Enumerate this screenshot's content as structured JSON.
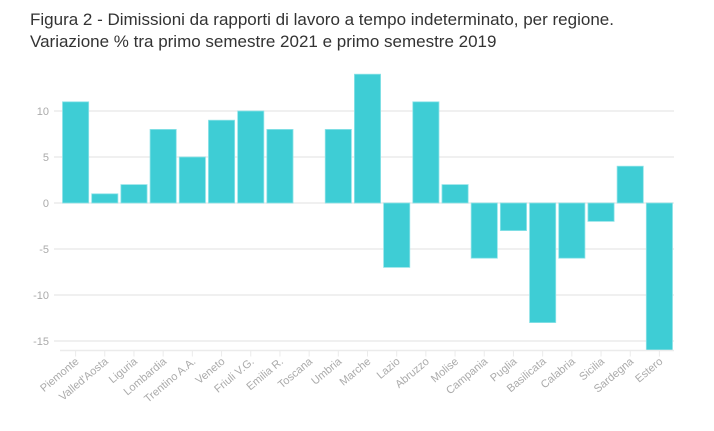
{
  "chart_data": {
    "type": "bar",
    "title": "Figura 2 - Dimissioni da rapporti di lavoro a tempo indeterminato, per regione.",
    "subtitle": "Variazione % tra primo semestre 2021 e primo semestre 2019",
    "xlabel": "",
    "ylabel": "",
    "categories": [
      "Piemonte",
      "Valled'Aosta",
      "Liguria",
      "Lombardia",
      "Trentino A.A.",
      "Veneto",
      "Friuli V.G.",
      "Emilia R.",
      "Toscana",
      "Umbria",
      "Marche",
      "Lazio",
      "Abruzzo",
      "Molise",
      "Campania",
      "Puglia",
      "Basilicata",
      "Calabria",
      "Sicilia",
      "Sardegna",
      "Estero"
    ],
    "values": [
      11,
      1,
      2,
      8,
      5,
      9,
      10,
      8,
      0,
      8,
      14,
      -7,
      11,
      2,
      -6,
      -3,
      -13,
      -6,
      -2,
      4,
      -16
    ],
    "ylim": [
      -16,
      14
    ],
    "yticks": [
      -15,
      -10,
      -5,
      0,
      5,
      10
    ],
    "grid": true,
    "legend": "none",
    "bar_color": "#3ACCD4"
  }
}
